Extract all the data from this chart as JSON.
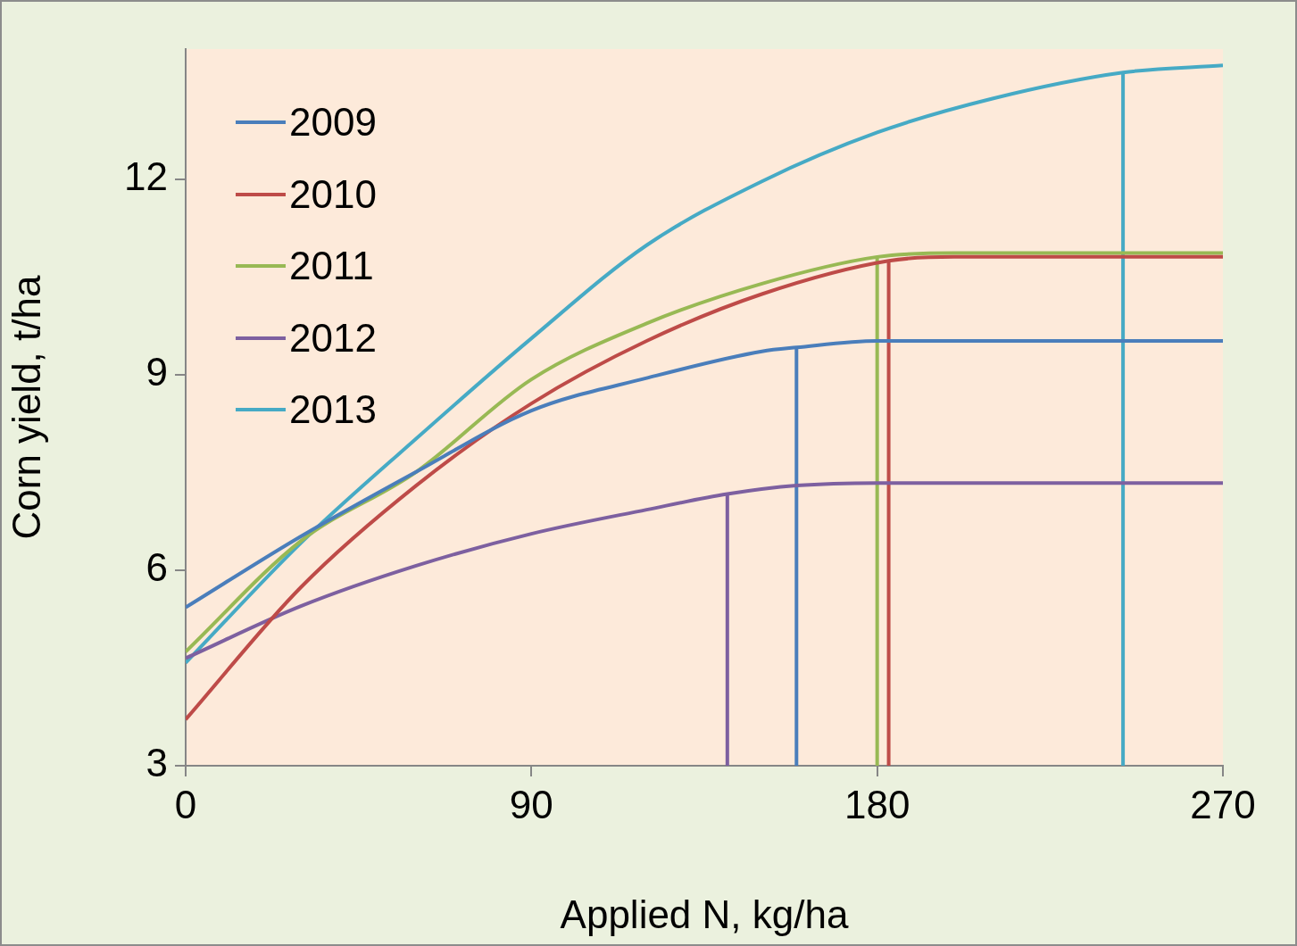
{
  "chart_data": {
    "type": "line",
    "xlabel": "Applied N, kg/ha",
    "ylabel": "Corn yield, t/ha",
    "xlim": [
      0,
      270
    ],
    "xticks": [
      0,
      90,
      180,
      270
    ],
    "ylim": [
      3,
      14
    ],
    "yticks": [
      3,
      6,
      9,
      12
    ],
    "grid": false,
    "legend": "top left",
    "marker": "none",
    "line_style": "solid",
    "series": [
      {
        "name": "2009",
        "color": "#4a7ebb",
        "x": [
          0,
          30,
          60,
          90,
          120,
          150,
          159,
          180,
          270
        ],
        "values": [
          5.43,
          6.52,
          7.51,
          8.45,
          8.95,
          9.36,
          9.42,
          9.52,
          9.52
        ]
      },
      {
        "name": "2010",
        "color": "#be4b48",
        "x": [
          0,
          30,
          60,
          90,
          120,
          150,
          183,
          200,
          270
        ],
        "values": [
          3.71,
          5.74,
          7.3,
          8.56,
          9.52,
          10.24,
          10.75,
          10.81,
          10.81
        ]
      },
      {
        "name": "2011",
        "color": "#98b954",
        "x": [
          0,
          30,
          60,
          90,
          120,
          150,
          180,
          200,
          270
        ],
        "values": [
          4.75,
          6.45,
          7.51,
          8.93,
          9.79,
          10.4,
          10.81,
          10.87,
          10.87
        ]
      },
      {
        "name": "2012",
        "color": "#7d60a0",
        "x": [
          0,
          30,
          60,
          90,
          120,
          141,
          159,
          180,
          270
        ],
        "values": [
          4.65,
          5.45,
          6.07,
          6.56,
          6.93,
          7.17,
          7.3,
          7.34,
          7.34
        ]
      },
      {
        "name": "2013",
        "color": "#46aac5",
        "x": [
          0,
          30,
          60,
          90,
          120,
          150,
          180,
          210,
          244,
          270
        ],
        "values": [
          4.58,
          6.42,
          8.02,
          9.56,
          10.99,
          11.97,
          12.72,
          13.24,
          13.64,
          13.75
        ]
      },
      {
        "color": "#4a7ebb",
        "x": [
          159,
          159
        ],
        "values": [
          3,
          9.42
        ]
      },
      {
        "color": "#be4b48",
        "x": [
          183,
          183
        ],
        "values": [
          3,
          10.75
        ]
      },
      {
        "color": "#98b954",
        "x": [
          180,
          180
        ],
        "values": [
          3,
          10.81
        ]
      },
      {
        "color": "#7d60a0",
        "x": [
          141,
          141
        ],
        "values": [
          3,
          7.17
        ]
      },
      {
        "color": "#46aac5",
        "x": [
          244,
          244
        ],
        "values": [
          3,
          13.64
        ]
      }
    ]
  }
}
